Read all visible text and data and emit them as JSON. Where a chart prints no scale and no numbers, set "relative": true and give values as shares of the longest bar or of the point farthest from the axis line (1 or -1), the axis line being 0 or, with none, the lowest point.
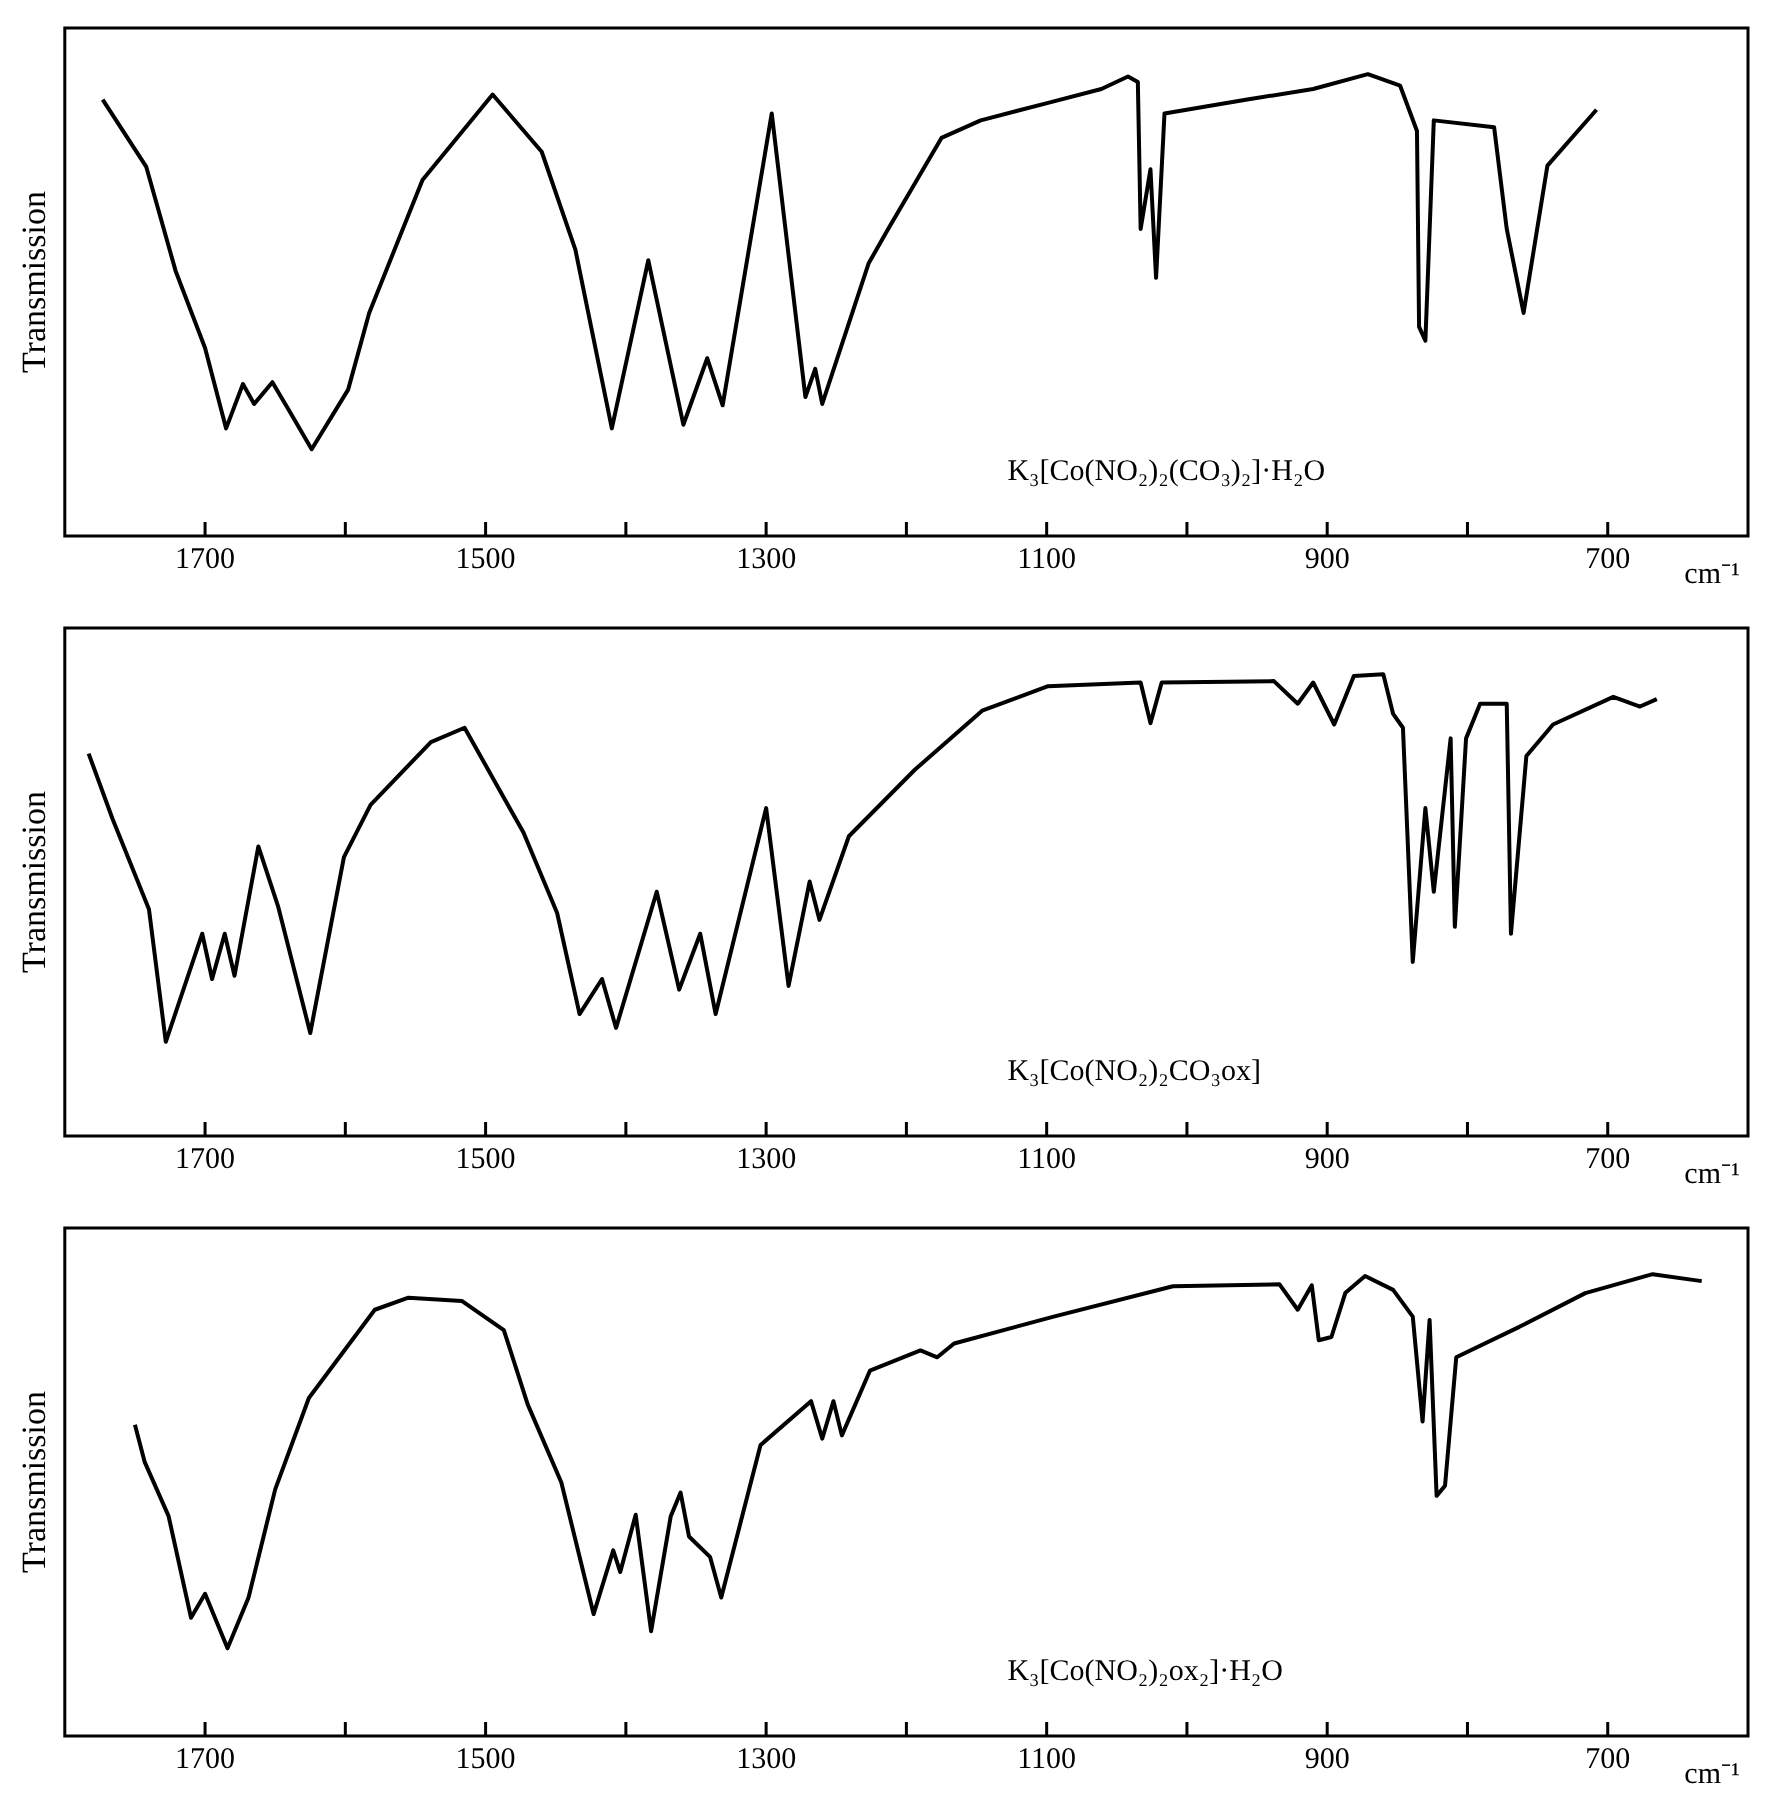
{
  "chart_data": [
    {
      "type": "line",
      "ylabel": "Transmission",
      "xlabel": "cm⁻¹",
      "relative": true,
      "marker": "none",
      "color": "#000000",
      "xlim": [
        1800,
        600
      ],
      "xticks": [
        1700,
        {
          "value": 1600,
          "label": null
        },
        1500,
        {
          "value": 1400,
          "label": null
        },
        1300,
        {
          "value": 1200,
          "label": null
        },
        1100,
        {
          "value": 1000,
          "label": null
        },
        900,
        {
          "value": 800,
          "label": null
        },
        700
      ],
      "annotations": [
        "K₃[Co(NO₂)₂(CO₃)₂]·H₂O"
      ],
      "x": [
        1773,
        1742,
        1721,
        1700,
        1685,
        1673,
        1665,
        1652,
        1640,
        1624,
        1598,
        1583,
        1545,
        1495,
        1460,
        1436,
        1410,
        1384,
        1359,
        1342,
        1331,
        1296,
        1272,
        1265,
        1260,
        1227,
        1213,
        1175,
        1147,
        1099,
        1061,
        1042,
        1035,
        1033,
        1026,
        1022,
        1016,
        957,
        910,
        871,
        848,
        836,
        834.5,
        830,
        824,
        781,
        772,
        760,
        743,
        708
      ],
      "values": [
        0.945,
        0.8,
        0.574,
        0.407,
        0.233,
        0.329,
        0.286,
        0.333,
        0.271,
        0.188,
        0.317,
        0.483,
        0.771,
        0.956,
        0.832,
        0.62,
        0.233,
        0.597,
        0.241,
        0.385,
        0.283,
        0.915,
        0.301,
        0.362,
        0.286,
        0.59,
        0.665,
        0.862,
        0.9,
        0.938,
        0.968,
        0.995,
        0.983,
        0.665,
        0.794,
        0.559,
        0.915,
        0.945,
        0.968,
        1.0,
        0.975,
        0.877,
        0.453,
        0.423,
        0.9,
        0.885,
        0.665,
        0.483,
        0.802,
        0.923
      ]
    },
    {
      "type": "line",
      "ylabel": "Transmission",
      "xlabel": "cm⁻¹",
      "relative": true,
      "marker": "none",
      "color": "#000000",
      "xlim": [
        1800,
        600
      ],
      "xticks": [
        1700,
        {
          "value": 1600,
          "label": null
        },
        1500,
        {
          "value": 1400,
          "label": null
        },
        1300,
        {
          "value": 1200,
          "label": null
        },
        1100,
        {
          "value": 1000,
          "label": null
        },
        900,
        {
          "value": 800,
          "label": null
        },
        700
      ],
      "annotations": [
        "K₃[Co(NO₂)₂CO₃ox]"
      ],
      "x": [
        1783,
        1766,
        1740,
        1728,
        1702,
        1695,
        1686,
        1679,
        1662,
        1648,
        1625,
        1601,
        1582,
        1539,
        1515,
        1473,
        1449,
        1433,
        1417,
        1407,
        1378,
        1362,
        1347,
        1336,
        1300,
        1284,
        1269,
        1262,
        1241,
        1194,
        1146,
        1099,
        1033,
        1026,
        1018,
        938,
        921,
        910,
        895,
        881,
        860,
        853,
        846,
        839,
        830,
        824,
        812,
        809,
        801,
        791,
        772,
        769,
        758,
        739,
        696,
        677,
        665
      ],
      "values": [
        0.828,
        0.687,
        0.491,
        0.204,
        0.438,
        0.34,
        0.438,
        0.347,
        0.627,
        0.498,
        0.223,
        0.604,
        0.717,
        0.853,
        0.884,
        0.657,
        0.483,
        0.264,
        0.34,
        0.234,
        0.529,
        0.317,
        0.438,
        0.264,
        0.71,
        0.325,
        0.551,
        0.468,
        0.649,
        0.793,
        0.921,
        0.974,
        0.982,
        0.894,
        0.982,
        0.985,
        0.936,
        0.982,
        0.891,
        0.996,
        1.0,
        0.914,
        0.884,
        0.377,
        0.71,
        0.529,
        0.861,
        0.453,
        0.861,
        0.936,
        0.936,
        0.438,
        0.823,
        0.891,
        0.951,
        0.93,
        0.946
      ]
    },
    {
      "type": "line",
      "ylabel": "Transmission",
      "xlabel": "cm⁻¹",
      "relative": true,
      "marker": "none",
      "color": "#000000",
      "xlim": [
        1800,
        600
      ],
      "xticks": [
        1700,
        {
          "value": 1600,
          "label": null
        },
        1500,
        {
          "value": 1400,
          "label": null
        },
        1300,
        {
          "value": 1200,
          "label": null
        },
        1100,
        {
          "value": 1000,
          "label": null
        },
        900,
        {
          "value": 800,
          "label": null
        },
        700
      ],
      "annotations": [
        "K₃[Co(NO₂)₂ox₂]·H₂O"
      ],
      "x": [
        1750,
        1743,
        1726,
        1710,
        1700,
        1684,
        1669,
        1650,
        1626,
        1579,
        1555,
        1517,
        1487,
        1470,
        1446,
        1423,
        1409,
        1404,
        1393,
        1382,
        1368,
        1361,
        1355,
        1340,
        1332,
        1304,
        1268,
        1260,
        1252,
        1246,
        1226,
        1190,
        1178,
        1166,
        1095,
        1010,
        934,
        921,
        911,
        906,
        897,
        887,
        873,
        853,
        839,
        832,
        827,
        822,
        816,
        808,
        763,
        716,
        668,
        633
      ],
      "values": [
        0.674,
        0.593,
        0.476,
        0.256,
        0.308,
        0.19,
        0.3,
        0.534,
        0.732,
        0.923,
        0.949,
        0.942,
        0.879,
        0.718,
        0.549,
        0.264,
        0.402,
        0.355,
        0.479,
        0.227,
        0.476,
        0.527,
        0.432,
        0.388,
        0.3,
        0.63,
        0.725,
        0.644,
        0.725,
        0.651,
        0.791,
        0.835,
        0.82,
        0.85,
        0.908,
        0.974,
        0.978,
        0.923,
        0.976,
        0.857,
        0.864,
        0.96,
        0.996,
        0.966,
        0.908,
        0.681,
        0.901,
        0.52,
        0.542,
        0.82,
        0.886,
        0.959,
        1.0,
        0.985
      ]
    }
  ]
}
